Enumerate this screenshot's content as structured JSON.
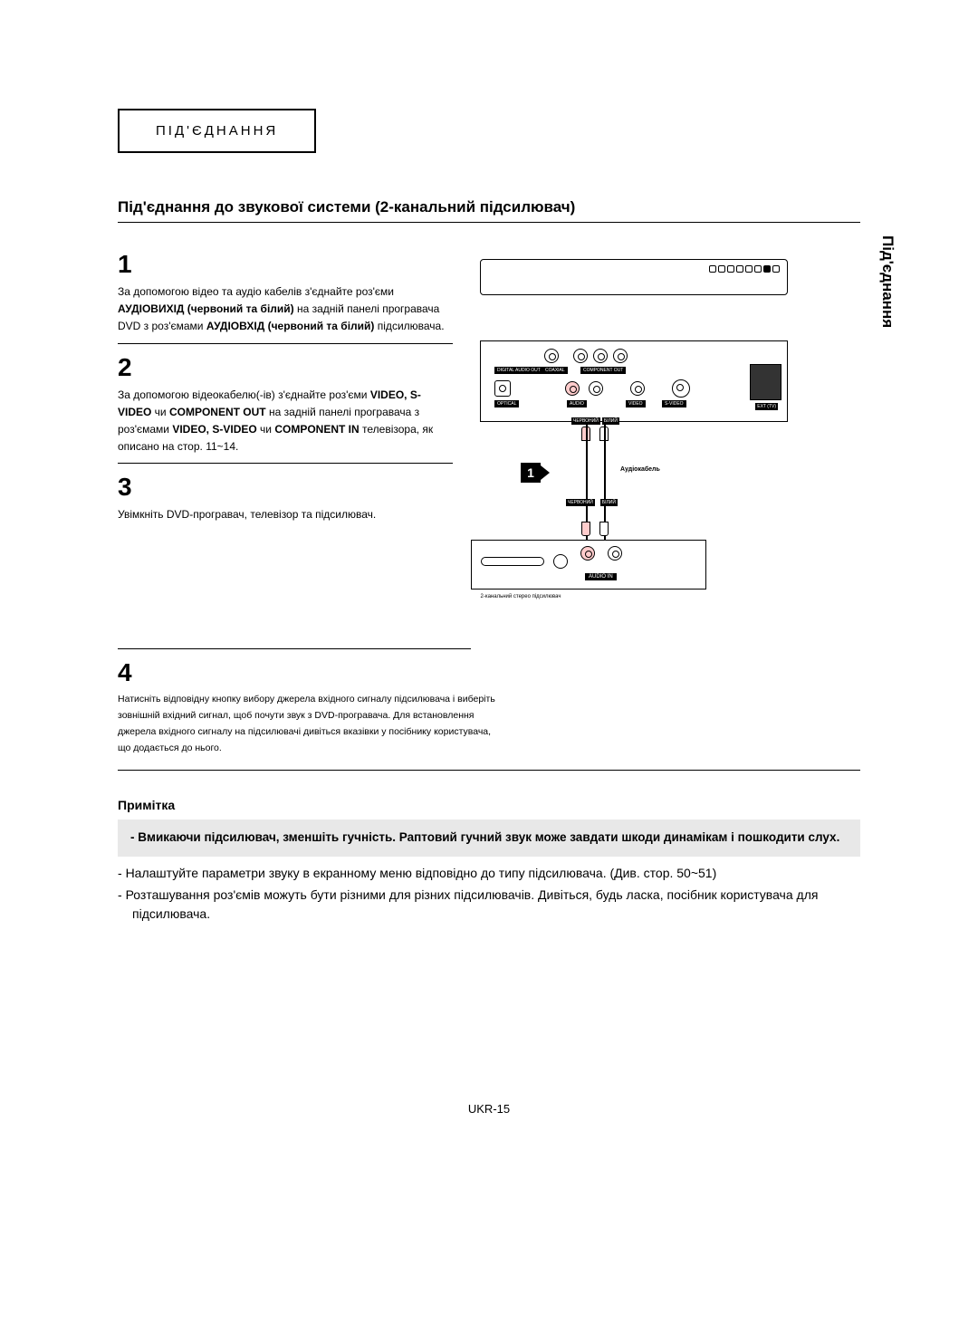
{
  "header": {
    "label": "ПІД'ЄДНАННЯ"
  },
  "sideTab": "Під'єднання",
  "sectionTitle": "Під'єднання до звукової системи (2-канальний підсилювач)",
  "steps": {
    "s1": {
      "num": "1",
      "text": "За допомогою відео та аудіо кабелів з'єднайте роз'єми <b>АУДІОВИХІД (червоний та білий)</b> на задній панелі програвача DVD з роз'ємами <b>АУДІОВХІД (червоний та білий)</b> підсилювача."
    },
    "s2": {
      "num": "2",
      "text": "За допомогою відеокабелю(-ів) з'єднайте роз'єми <b>VIDEO, S-VIDEO</b> чи <b>COMPONENT OUT</b> на задній панелі програвача з роз'ємами <b>VIDEO, S-VIDEO</b> чи <b>COMPONENT IN</b> телевізора, як описано на стор. 11~14."
    },
    "s3": {
      "num": "3",
      "text": "Увімкніть DVD-програвач, телевізор та підсилювач."
    },
    "s4": {
      "num": "4",
      "text": "Натисніть відповідну кнопку вибору джерела вхідного сигналу підсилювача і виберіть зовнішній вхідний сигнал, щоб почути звук з DVD-програвача. Для встановлення джерела вхідного сигналу на підсилювачі дивіться вказівки у посібнику користувача, що додається до нього."
    }
  },
  "note": {
    "title": "Примітка",
    "boldItem": "Вмикаючи підсилювач, зменшіть гучність. Раптовий гучний звук може завдати шкоди динамікам і пошкодити слух.",
    "item1": "Налаштуйте параметри звуку в екранному меню відповідно до типу підсилювача. (Див. стор. 50~51)",
    "item2": "Розташування роз'ємів можуть бути різними для різних підсилювачів. Дивіться, будь ласка, посібник користувача для підсилювача."
  },
  "diagram": {
    "stepMarker": "1",
    "cableLabel": "Аудіокабель",
    "plugRed": "ЧЕРВОНИЙ",
    "plugWhite": "БІЛИЙ",
    "audioInLabel": "AUDIO IN",
    "ampCaption": "2-канальний стерео підсилювач",
    "labels": {
      "digitalAudio": "DIGITAL AUDIO OUT",
      "coaxial": "COAXIAL",
      "componentOut": "COMPONENT OUT",
      "optical": "OPTICAL",
      "audio": "AUDIO",
      "video": "VIDEO",
      "svideo": "S-VIDEO",
      "ext": "EXT (TV)"
    }
  },
  "pageNumber": "UKR-15",
  "colors": {
    "bg": "#ffffff",
    "text": "#000000",
    "noteBox": "#e8e8e8",
    "jackRed": "#ffcccc"
  }
}
